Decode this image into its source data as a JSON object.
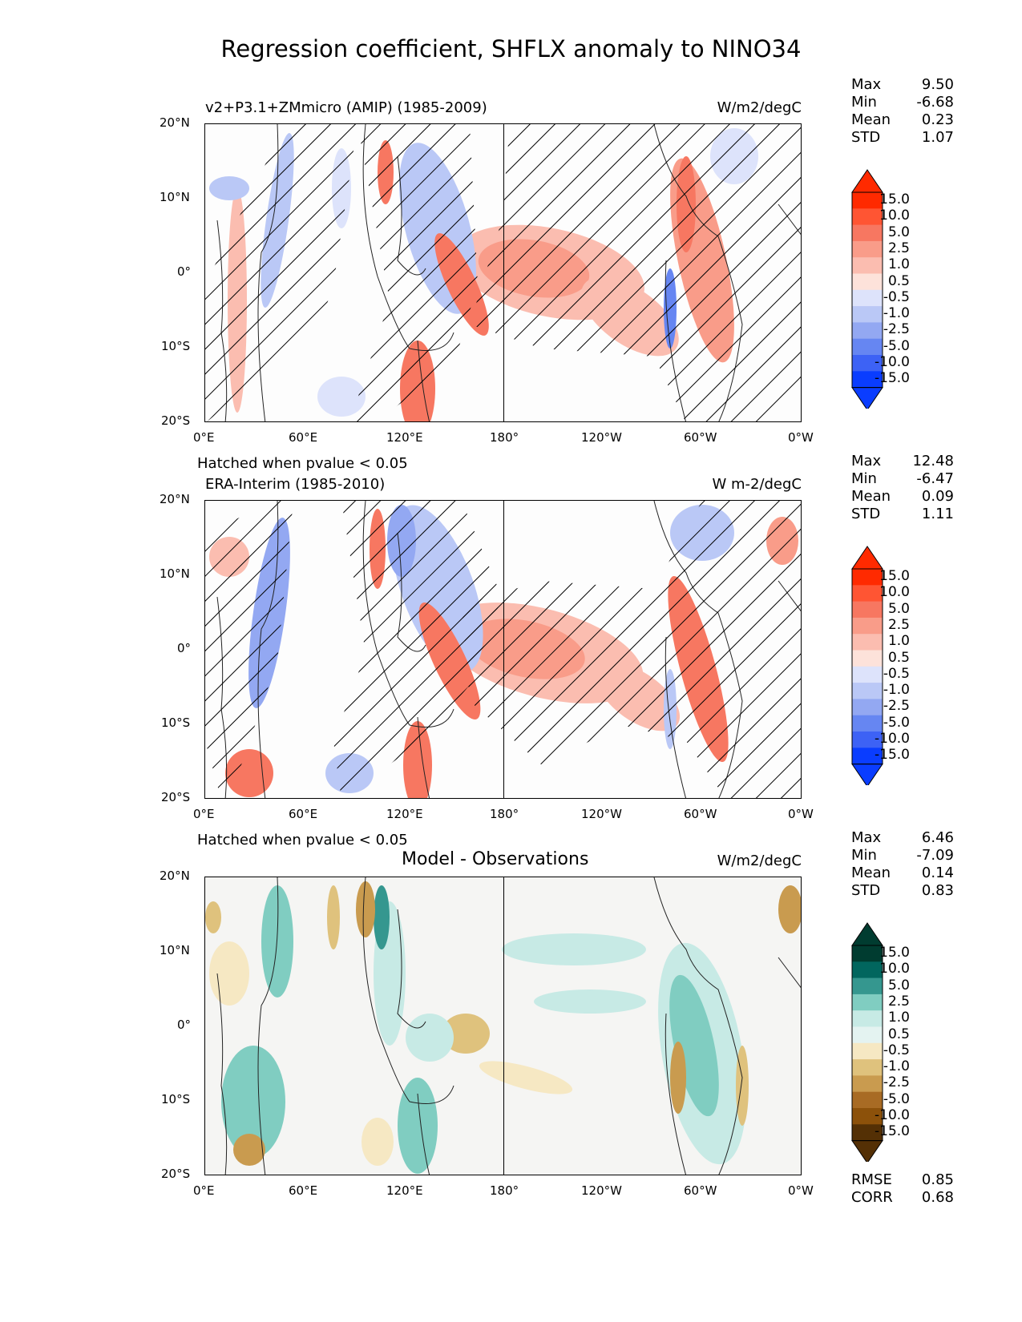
{
  "figure_title": "Regression coefficient, SHFLX anomaly to NINO34",
  "hatch_note": "Hatched when pvalue < 0.05",
  "lon_ticks": [
    "0°E",
    "60°E",
    "120°E",
    "180°",
    "120°W",
    "60°W",
    "0°W"
  ],
  "lat_ticks": [
    "20°N",
    "10°N",
    "0°",
    "10°S",
    "20°S"
  ],
  "colorbar_levels": [
    "15.0",
    "10.0",
    "5.0",
    "2.5",
    "1.0",
    "0.5",
    "-0.5",
    "-1.0",
    "-2.5",
    "-5.0",
    "-10.0",
    "-15.0"
  ],
  "colors": {
    "div_red": [
      "#ff2a00",
      "#ff5533",
      "#f77761",
      "#f99c89",
      "#fbbdb0",
      "#fde2da"
    ],
    "div_blue": [
      "#dde3fb",
      "#bac8f6",
      "#93a8f2",
      "#6686f2",
      "#3d62f5",
      "#0a3dff"
    ],
    "brbg_teal": [
      "#003c30",
      "#01665e",
      "#35978f",
      "#80cdc1",
      "#c7eae5",
      "#e4f3f1"
    ],
    "brbg_brown": [
      "#f6e8c3",
      "#dfc27d",
      "#c99b4f",
      "#a86b24",
      "#8c510a",
      "#543005"
    ]
  },
  "panels": [
    {
      "title_left": "v2+P3.1+ZMmicro (AMIP) (1985-2009)",
      "units": "W/m2/degC",
      "stats": {
        "max": "9.50",
        "min": "-6.68",
        "mean": "0.23",
        "std": "1.07"
      }
    },
    {
      "title_left": "ERA-Interim (1985-2010)",
      "units": "W m-2/degC",
      "stats": {
        "max": "12.48",
        "min": "-6.47",
        "mean": "0.09",
        "std": "1.11"
      }
    },
    {
      "title_center": "Model - Observations",
      "units": "W/m2/degC",
      "stats": {
        "max": "6.46",
        "min": "-7.09",
        "mean": "0.14",
        "std": "0.83"
      },
      "rmse": "0.85",
      "corr": "0.68"
    }
  ],
  "stat_labels": {
    "max": "Max",
    "min": "Min",
    "mean": "Mean",
    "std": "STD",
    "rmse": "RMSE",
    "corr": "CORR"
  },
  "chart_data": [
    {
      "type": "heatmap",
      "title": "v2+P3.1+ZMmicro (AMIP) (1985-2009)",
      "units": "W/m2/degC",
      "xlim": [
        0,
        360
      ],
      "ylim": [
        -20,
        20
      ],
      "color_levels": [
        -15,
        -10,
        -5,
        -2.5,
        -1,
        -0.5,
        0.5,
        1,
        2.5,
        5,
        10,
        15
      ],
      "stats": {
        "max": 9.5,
        "min": -6.68,
        "mean": 0.23,
        "std": 1.07
      }
    },
    {
      "type": "heatmap",
      "title": "ERA-Interim (1985-2010)",
      "units": "W m-2/degC",
      "xlim": [
        0,
        360
      ],
      "ylim": [
        -20,
        20
      ],
      "color_levels": [
        -15,
        -10,
        -5,
        -2.5,
        -1,
        -0.5,
        0.5,
        1,
        2.5,
        5,
        10,
        15
      ],
      "stats": {
        "max": 12.48,
        "min": -6.47,
        "mean": 0.09,
        "std": 1.11
      }
    },
    {
      "type": "heatmap",
      "title": "Model - Observations",
      "units": "W/m2/degC",
      "xlim": [
        0,
        360
      ],
      "ylim": [
        -20,
        20
      ],
      "color_levels": [
        -15,
        -10,
        -5,
        -2.5,
        -1,
        -0.5,
        0.5,
        1,
        2.5,
        5,
        10,
        15
      ],
      "stats": {
        "max": 6.46,
        "min": -7.09,
        "mean": 0.14,
        "std": 0.83,
        "rmse": 0.85,
        "corr": 0.68
      }
    }
  ]
}
